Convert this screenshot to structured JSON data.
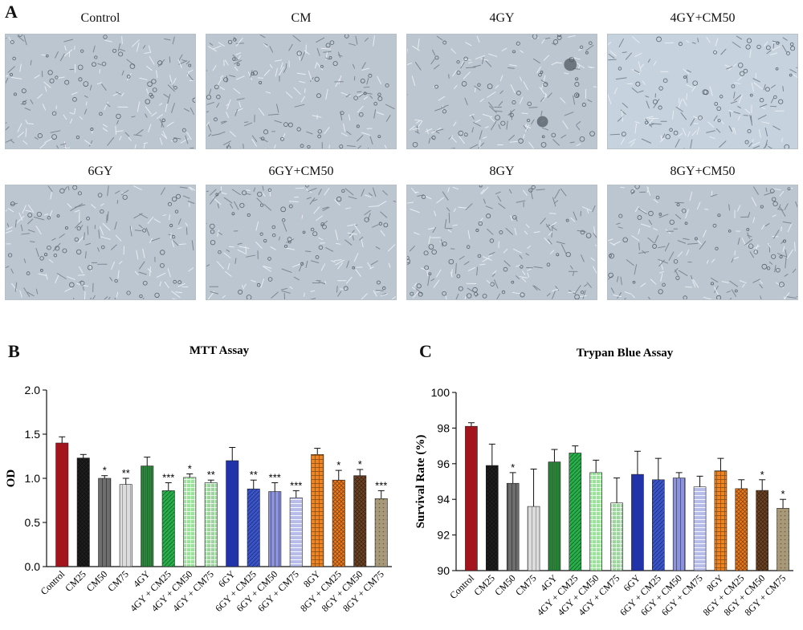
{
  "panels": {
    "a_label": "A",
    "b_label": "B",
    "c_label": "C",
    "micrographs": [
      "Control",
      "CM",
      "4GY",
      "4GY+CM50",
      "6GY",
      "6GY+CM50",
      "8GY",
      "8GY+CM50"
    ]
  },
  "chart_data": [
    {
      "type": "bar",
      "title": "MTT Assay",
      "ylabel": "OD",
      "xlabel": "",
      "ylim": [
        0,
        2.0
      ],
      "yticks": [
        "0.0",
        "0.5",
        "1.0",
        "1.5",
        "2.0"
      ],
      "grid": false,
      "categories": [
        "Control",
        "CM25",
        "CM50",
        "CM75",
        "4GY",
        "4GY + CM25",
        "4GY + CM50",
        "4GY + CM75",
        "6GY",
        "6GY + CM25",
        "6GY + CM50",
        "6GY + CM75",
        "8GY",
        "8GY + CM25",
        "8GY + CM50",
        "8GY + CM75"
      ],
      "values": [
        1.4,
        1.23,
        1.0,
        0.93,
        1.14,
        0.86,
        1.01,
        0.95,
        1.2,
        0.88,
        0.85,
        0.78,
        1.27,
        0.98,
        1.03,
        0.77
      ],
      "errors": [
        0.07,
        0.04,
        0.03,
        0.07,
        0.1,
        0.09,
        0.04,
        0.03,
        0.15,
        0.1,
        0.1,
        0.08,
        0.07,
        0.11,
        0.07,
        0.09
      ],
      "significance": [
        "",
        "",
        "*",
        "**",
        "",
        "***",
        "*",
        "**",
        "",
        "**",
        "***",
        "***",
        "",
        "*",
        "*",
        "***"
      ],
      "colors": [
        "#a3141c",
        "#1e1e1e",
        "#6e6e6e",
        "#dcdcdc",
        "#2e8b3e",
        "#28b04a",
        "#9be39b",
        "#9ed49e",
        "#2232a8",
        "#3a55cc",
        "#8c93dc",
        "#b8bce8",
        "#ee8522",
        "#ed7a1c",
        "#6e4425",
        "#a89a78"
      ]
    },
    {
      "type": "bar",
      "title": "Trypan Blue Assay",
      "ylabel": "Survival Rate (%)",
      "xlabel": "",
      "ylim": [
        90,
        100
      ],
      "yticks": [
        "90",
        "92",
        "94",
        "96",
        "98",
        "100"
      ],
      "grid": false,
      "categories": [
        "Control",
        "CM25",
        "CM50",
        "CM75",
        "4GY",
        "4GY + CM25",
        "4GY + CM50",
        "4GY + CM75",
        "6GY",
        "6GY + CM25",
        "6GY + CM50",
        "6GY + CM75",
        "8GY",
        "8GY + CM25",
        "8GY + CM50",
        "8GY + CM75"
      ],
      "values": [
        98.1,
        95.9,
        94.9,
        93.6,
        96.1,
        96.6,
        95.5,
        93.8,
        95.4,
        95.1,
        95.2,
        94.7,
        95.6,
        94.6,
        94.5,
        93.5
      ],
      "errors": [
        0.2,
        1.2,
        0.6,
        2.1,
        0.7,
        0.4,
        0.7,
        1.4,
        1.3,
        1.2,
        0.3,
        0.6,
        0.7,
        0.5,
        0.6,
        0.5
      ],
      "significance": [
        "",
        "",
        "*",
        "",
        "",
        "",
        "",
        "",
        "",
        "",
        "",
        "",
        "",
        "",
        "*",
        "*"
      ],
      "colors": [
        "#a3141c",
        "#1e1e1e",
        "#6e6e6e",
        "#dcdcdc",
        "#2e8b3e",
        "#28b04a",
        "#9be39b",
        "#9ed49e",
        "#2232a8",
        "#3a55cc",
        "#8c93dc",
        "#b8bce8",
        "#ee8522",
        "#ed7a1c",
        "#6e4425",
        "#a89a78"
      ]
    }
  ]
}
